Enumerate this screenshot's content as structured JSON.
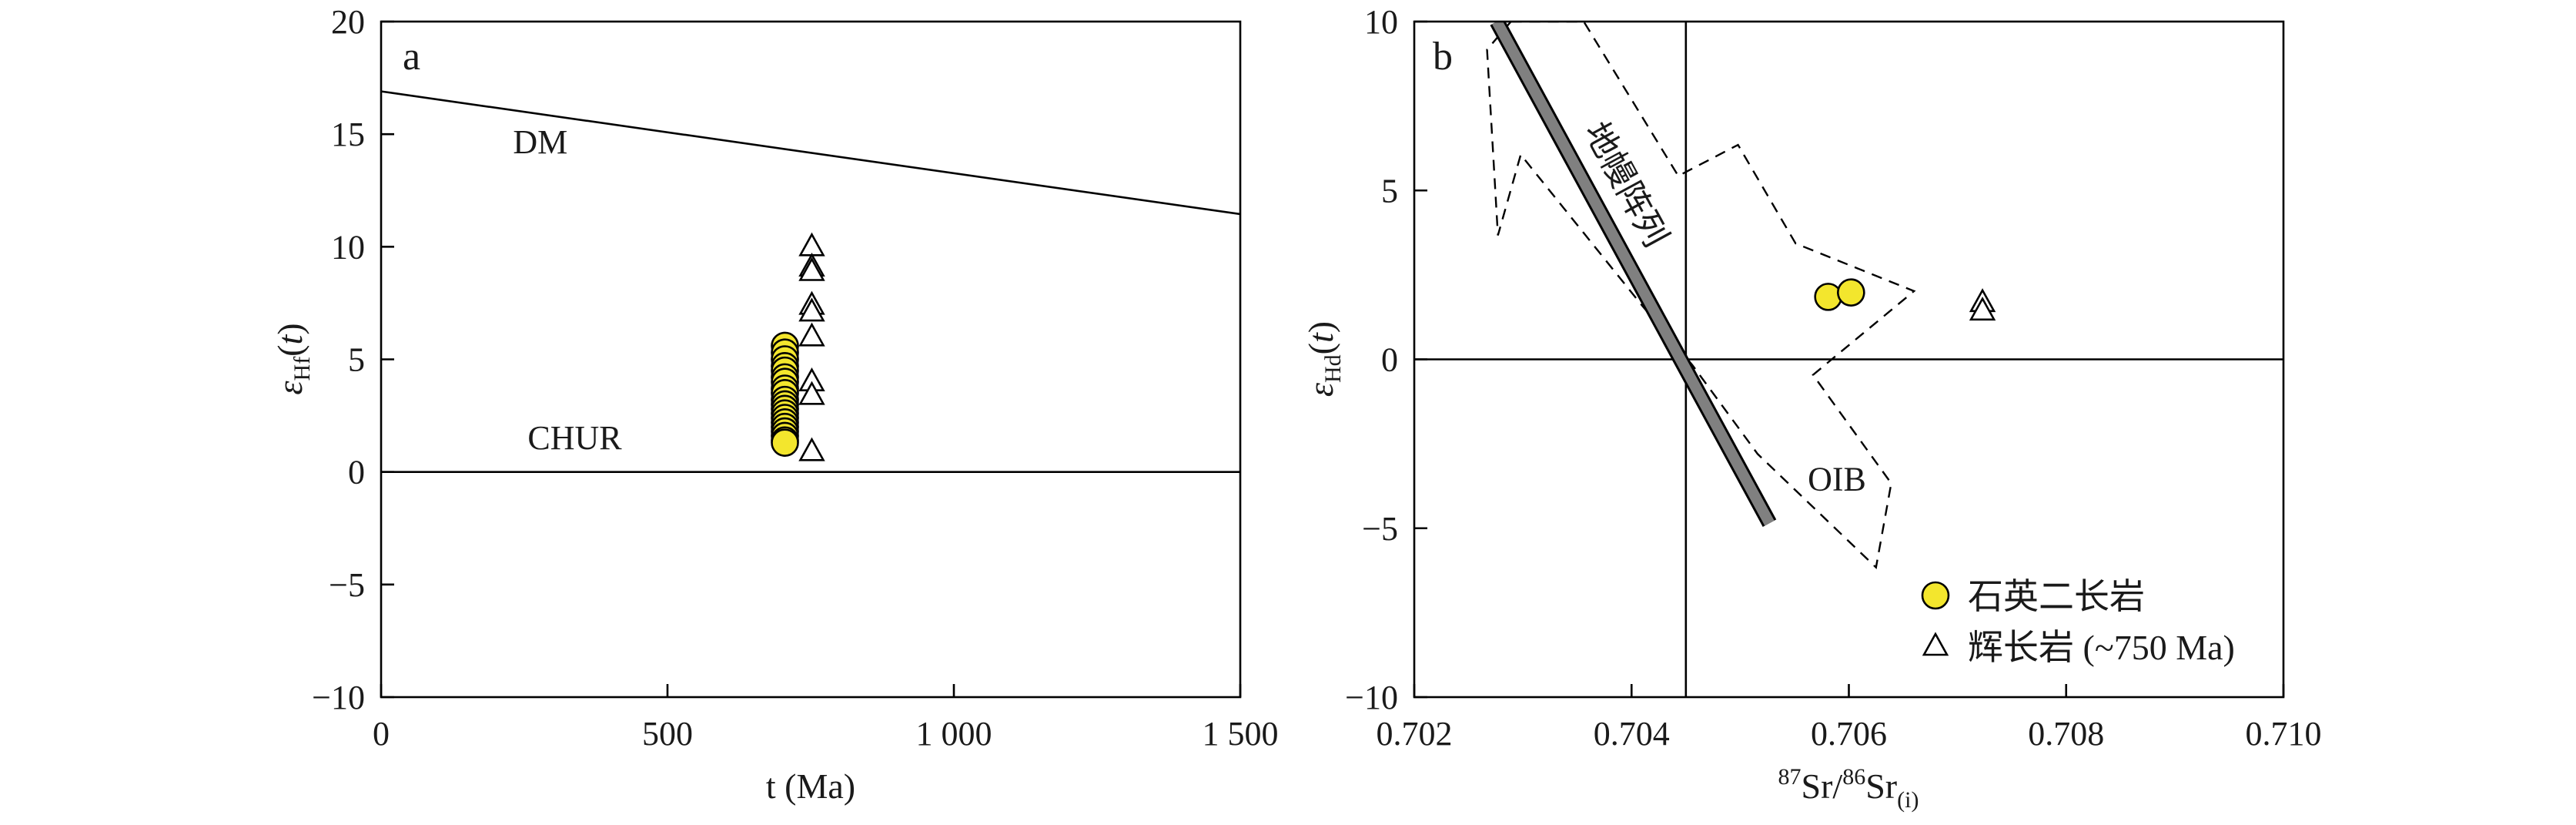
{
  "chart_data": [
    {
      "panel_label": "a",
      "type": "scatter",
      "xlabel": "t (Ma)",
      "ylabel": {
        "symbol": "ε",
        "sub": "Hf",
        "open": "(",
        "var": "t",
        "close": ")"
      },
      "xlim": [
        0,
        1500
      ],
      "ylim": [
        -10,
        20
      ],
      "xticks": [
        {
          "value": 0,
          "label": "0"
        },
        {
          "value": 500,
          "label": "500"
        },
        {
          "value": 1000,
          "label": "1 000"
        },
        {
          "value": 1500,
          "label": "1 500"
        }
      ],
      "yticks": [
        {
          "value": -10,
          "label": "−10"
        },
        {
          "value": -5,
          "label": "−5"
        },
        {
          "value": 0,
          "label": "0"
        },
        {
          "value": 5,
          "label": "5"
        },
        {
          "value": 10,
          "label": "10"
        },
        {
          "value": 15,
          "label": "15"
        },
        {
          "value": 20,
          "label": "20"
        }
      ],
      "reference_curves": [
        {
          "label": "DM",
          "x": [
            0,
            1500
          ],
          "y": [
            16.9,
            11.45
          ]
        },
        {
          "label": "CHUR",
          "x": [
            0,
            1500
          ],
          "y": [
            0,
            0
          ]
        }
      ],
      "series": [
        {
          "marker": "circle",
          "color": "#f3e62d",
          "points": [
            [
              705,
              5.6
            ],
            [
              705,
              5.3
            ],
            [
              705,
              5.0
            ],
            [
              705,
              4.7
            ],
            [
              705,
              4.5
            ],
            [
              705,
              4.2
            ],
            [
              705,
              4.0
            ],
            [
              705,
              3.7
            ],
            [
              705,
              3.5
            ],
            [
              705,
              3.2
            ],
            [
              705,
              3.0
            ],
            [
              705,
              2.8
            ],
            [
              705,
              2.6
            ],
            [
              705,
              2.4
            ],
            [
              705,
              2.2
            ],
            [
              705,
              2.0
            ],
            [
              705,
              1.8
            ],
            [
              705,
              1.6
            ],
            [
              705,
              1.4
            ],
            [
              705,
              1.3
            ]
          ]
        },
        {
          "marker": "triangle",
          "color": "#ffffff",
          "points": [
            [
              752,
              10.0
            ],
            [
              752,
              9.1
            ],
            [
              752,
              8.9
            ],
            [
              752,
              7.4
            ],
            [
              752,
              7.1
            ],
            [
              752,
              6.0
            ],
            [
              752,
              4.0
            ],
            [
              752,
              3.4
            ],
            [
              752,
              0.9
            ]
          ]
        }
      ]
    },
    {
      "panel_label": "b",
      "type": "scatter",
      "xlabel": {
        "sup1": "87",
        "t1": "Sr/",
        "sup2": "86",
        "t2": "Sr",
        "sub": "(i)"
      },
      "ylabel": {
        "symbol": "ε",
        "sub": "Hd",
        "open": "(",
        "var": "t",
        "close": ")"
      },
      "xlim": [
        0.702,
        0.71
      ],
      "ylim": [
        -10,
        10
      ],
      "xticks": [
        {
          "value": 0.702,
          "label": "0.702"
        },
        {
          "value": 0.704,
          "label": "0.704"
        },
        {
          "value": 0.706,
          "label": "0.706"
        },
        {
          "value": 0.708,
          "label": "0.708"
        },
        {
          "value": 0.71,
          "label": "0.710"
        }
      ],
      "yticks": [
        {
          "value": -10,
          "label": "−10"
        },
        {
          "value": -5,
          "label": "−5"
        },
        {
          "value": 0,
          "label": "0"
        },
        {
          "value": 5,
          "label": "5"
        },
        {
          "value": 10,
          "label": "10"
        }
      ],
      "reference_lines": {
        "x": 0.7045,
        "y": 0
      },
      "mantle_array": {
        "label": "地幔阵列",
        "x": [
          0.70276,
          0.70527
        ],
        "y": [
          10,
          -4.85
        ],
        "color": "#808080"
      },
      "oib_field": {
        "label": "OIB",
        "polygon": [
          [
            0.70289,
            10.0
          ],
          [
            0.70356,
            10.0
          ],
          [
            0.70443,
            5.43
          ],
          [
            0.70498,
            6.35
          ],
          [
            0.70551,
            3.43
          ],
          [
            0.7066,
            2.02
          ],
          [
            0.70567,
            -0.46
          ],
          [
            0.70639,
            -3.67
          ],
          [
            0.70625,
            -6.16
          ],
          [
            0.70516,
            -2.8
          ],
          [
            0.70456,
            -0.17
          ],
          [
            0.7041,
            1.58
          ],
          [
            0.70298,
            6.06
          ],
          [
            0.70277,
            3.67
          ],
          [
            0.70267,
            9.17
          ]
        ]
      },
      "series": [
        {
          "name": "石英二长岩",
          "marker": "circle",
          "color": "#f3e62d",
          "points": [
            [
              0.70581,
              1.85
            ],
            [
              0.70602,
              1.98
            ]
          ]
        },
        {
          "name": "辉长岩 (~750 Ma)",
          "marker": "triangle",
          "color": "#ffffff",
          "points": [
            [
              0.70723,
              1.68
            ],
            [
              0.70723,
              1.43
            ]
          ]
        }
      ],
      "legend_position": "bottom-right"
    }
  ]
}
